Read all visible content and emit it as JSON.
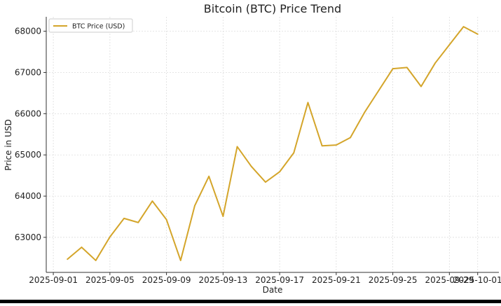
{
  "colors": {
    "series": "#d4a52a",
    "grid": "#dddddd",
    "axis": "#333333",
    "bottom_bar": "#000000"
  },
  "chart_data": {
    "type": "line",
    "title": "Bitcoin (BTC) Price Trend",
    "xlabel": "Date",
    "ylabel": "Price in USD",
    "x_axis_type": "date",
    "xlim": [
      "2025-08-31T12:00",
      "2025-10-02T12:00"
    ],
    "ylim": [
      62150,
      68350
    ],
    "x_ticks": [
      "2025-09-01",
      "2025-09-05",
      "2025-09-09",
      "2025-09-13",
      "2025-09-17",
      "2025-09-21",
      "2025-09-25",
      "2025-09-29",
      "2025-10-01"
    ],
    "y_ticks": [
      63000,
      64000,
      65000,
      66000,
      67000,
      68000
    ],
    "grid": true,
    "legend": {
      "position": "top-left"
    },
    "series": [
      {
        "name": "BTC Price (USD)",
        "x": [
          "2025-09-02",
          "2025-09-03",
          "2025-09-04",
          "2025-09-05",
          "2025-09-06",
          "2025-09-07",
          "2025-09-08",
          "2025-09-09",
          "2025-09-10",
          "2025-09-11",
          "2025-09-12",
          "2025-09-13",
          "2025-09-14",
          "2025-09-15",
          "2025-09-16",
          "2025-09-17",
          "2025-09-18",
          "2025-09-19",
          "2025-09-20",
          "2025-09-21",
          "2025-09-22",
          "2025-09-23",
          "2025-09-24",
          "2025-09-25",
          "2025-09-26",
          "2025-09-27",
          "2025-09-28",
          "2025-09-29",
          "2025-09-30",
          "2025-10-01"
        ],
        "values": [
          62470,
          62760,
          62440,
          63010,
          63460,
          63360,
          63880,
          63430,
          62440,
          63770,
          64480,
          63510,
          65200,
          64720,
          64340,
          64590,
          65050,
          66270,
          65220,
          65240,
          65420,
          66030,
          66560,
          67090,
          67120,
          66660,
          67230,
          67670,
          68110,
          67930
        ]
      }
    ]
  }
}
